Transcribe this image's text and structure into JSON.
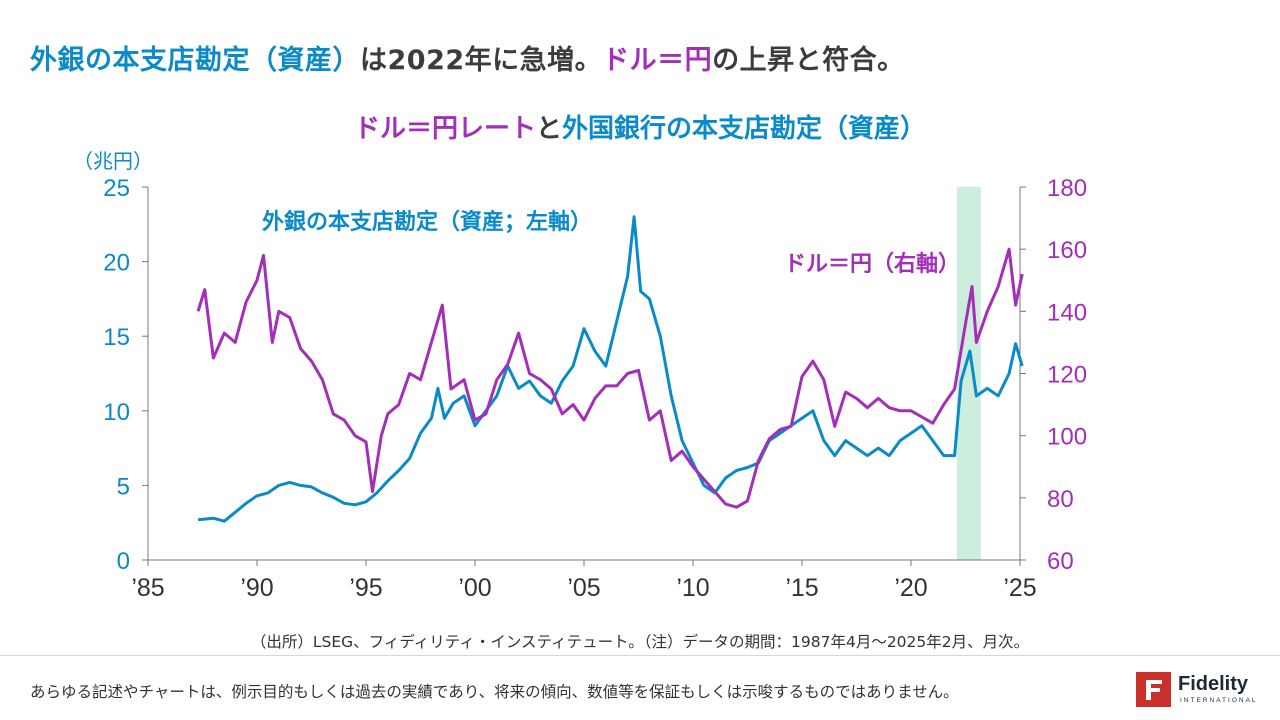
{
  "headline": {
    "part1": "外銀の本支店勘定（資産）",
    "part2": "は2022年に急増。",
    "part3": "ドル＝円",
    "part4": "の上昇と符合。"
  },
  "chart_title": {
    "part1": "ドル＝円レート",
    "part2": "と",
    "part3": "外国銀行の本支店勘定（資産）"
  },
  "source_note": "（出所）LSEG、フィディリティ・インスティテュート。（注）データの期間：1987年4月～2025年2月、月次。",
  "disclaimer": "あらゆる記述やチャートは、例示目的もしくは過去の実績であり、将来の傾向、数値等を保証もしくは示唆するものではありません。",
  "logo": {
    "name": "Fidelity",
    "sub": "INTERNATIONAL"
  },
  "colors": {
    "blue": "#0a8ac8",
    "purple": "#a32fb8",
    "highlight": "#cdeedd",
    "text": "#3c3c3c"
  },
  "chart_data": {
    "type": "line",
    "left_axis": {
      "unit_label": "（兆円）",
      "ylim": [
        0,
        25
      ],
      "ticks": [
        "0",
        "5",
        "10",
        "15",
        "20",
        "25"
      ]
    },
    "right_axis": {
      "ylim": [
        60,
        180
      ],
      "ticks": [
        "60",
        "80",
        "100",
        "120",
        "140",
        "160",
        "180"
      ]
    },
    "x_axis": {
      "xlim": [
        1985,
        2025
      ],
      "ticks": [
        "’85",
        "’90",
        "’95",
        "’00",
        "’05",
        "’10",
        "’15",
        "’20",
        "’25"
      ]
    },
    "highlight_period": [
      2022.1,
      2023.2
    ],
    "series": [
      {
        "name": "外銀の本支店勘定（資産；左軸）",
        "axis": "left",
        "color": "#0a8ac8",
        "points": [
          [
            1987.3,
            2.7
          ],
          [
            1988.0,
            2.8
          ],
          [
            1988.5,
            2.6
          ],
          [
            1989.0,
            3.2
          ],
          [
            1989.5,
            3.8
          ],
          [
            1990.0,
            4.3
          ],
          [
            1990.5,
            4.5
          ],
          [
            1991.0,
            5.0
          ],
          [
            1991.5,
            5.2
          ],
          [
            1992.0,
            5.0
          ],
          [
            1992.5,
            4.9
          ],
          [
            1993.0,
            4.5
          ],
          [
            1993.5,
            4.2
          ],
          [
            1994.0,
            3.8
          ],
          [
            1994.5,
            3.7
          ],
          [
            1995.0,
            3.9
          ],
          [
            1995.5,
            4.5
          ],
          [
            1996.0,
            5.3
          ],
          [
            1996.5,
            6.0
          ],
          [
            1997.0,
            6.8
          ],
          [
            1997.5,
            8.5
          ],
          [
            1998.0,
            9.5
          ],
          [
            1998.3,
            11.5
          ],
          [
            1998.6,
            9.5
          ],
          [
            1999.0,
            10.5
          ],
          [
            1999.5,
            11.0
          ],
          [
            2000.0,
            9.0
          ],
          [
            2000.5,
            10.0
          ],
          [
            2001.0,
            11.0
          ],
          [
            2001.5,
            13.0
          ],
          [
            2002.0,
            11.5
          ],
          [
            2002.5,
            12.0
          ],
          [
            2003.0,
            11.0
          ],
          [
            2003.5,
            10.5
          ],
          [
            2004.0,
            12.0
          ],
          [
            2004.5,
            13.0
          ],
          [
            2005.0,
            15.5
          ],
          [
            2005.5,
            14.0
          ],
          [
            2006.0,
            13.0
          ],
          [
            2006.5,
            16.0
          ],
          [
            2007.0,
            19.0
          ],
          [
            2007.3,
            23.0
          ],
          [
            2007.6,
            18.0
          ],
          [
            2008.0,
            17.5
          ],
          [
            2008.5,
            15.0
          ],
          [
            2009.0,
            11.0
          ],
          [
            2009.5,
            8.0
          ],
          [
            2010.0,
            6.5
          ],
          [
            2010.5,
            5.0
          ],
          [
            2011.0,
            4.5
          ],
          [
            2011.5,
            5.5
          ],
          [
            2012.0,
            6.0
          ],
          [
            2012.5,
            6.2
          ],
          [
            2013.0,
            6.5
          ],
          [
            2013.5,
            8.0
          ],
          [
            2014.0,
            8.5
          ],
          [
            2014.5,
            9.0
          ],
          [
            2015.0,
            9.5
          ],
          [
            2015.5,
            10.0
          ],
          [
            2016.0,
            8.0
          ],
          [
            2016.5,
            7.0
          ],
          [
            2017.0,
            8.0
          ],
          [
            2017.5,
            7.5
          ],
          [
            2018.0,
            7.0
          ],
          [
            2018.5,
            7.5
          ],
          [
            2019.0,
            7.0
          ],
          [
            2019.5,
            8.0
          ],
          [
            2020.0,
            8.5
          ],
          [
            2020.5,
            9.0
          ],
          [
            2021.0,
            8.0
          ],
          [
            2021.5,
            7.0
          ],
          [
            2022.0,
            7.0
          ],
          [
            2022.3,
            12.0
          ],
          [
            2022.7,
            14.0
          ],
          [
            2023.0,
            11.0
          ],
          [
            2023.5,
            11.5
          ],
          [
            2024.0,
            11.0
          ],
          [
            2024.5,
            12.5
          ],
          [
            2024.8,
            14.5
          ],
          [
            2025.1,
            13.0
          ]
        ]
      },
      {
        "name": "ドル＝円（右軸）",
        "axis": "right",
        "color": "#a32fb8",
        "points": [
          [
            1987.3,
            140
          ],
          [
            1987.6,
            147
          ],
          [
            1988.0,
            125
          ],
          [
            1988.5,
            133
          ],
          [
            1989.0,
            130
          ],
          [
            1989.5,
            143
          ],
          [
            1990.0,
            150
          ],
          [
            1990.3,
            158
          ],
          [
            1990.7,
            130
          ],
          [
            1991.0,
            140
          ],
          [
            1991.5,
            138
          ],
          [
            1992.0,
            128
          ],
          [
            1992.5,
            124
          ],
          [
            1993.0,
            118
          ],
          [
            1993.5,
            107
          ],
          [
            1994.0,
            105
          ],
          [
            1994.5,
            100
          ],
          [
            1995.0,
            98
          ],
          [
            1995.3,
            82
          ],
          [
            1995.7,
            100
          ],
          [
            1996.0,
            107
          ],
          [
            1996.5,
            110
          ],
          [
            1997.0,
            120
          ],
          [
            1997.5,
            118
          ],
          [
            1998.0,
            130
          ],
          [
            1998.5,
            142
          ],
          [
            1998.9,
            115
          ],
          [
            1999.5,
            118
          ],
          [
            2000.0,
            105
          ],
          [
            2000.5,
            107
          ],
          [
            2001.0,
            118
          ],
          [
            2001.5,
            123
          ],
          [
            2002.0,
            133
          ],
          [
            2002.5,
            120
          ],
          [
            2003.0,
            118
          ],
          [
            2003.5,
            115
          ],
          [
            2004.0,
            107
          ],
          [
            2004.5,
            110
          ],
          [
            2005.0,
            105
          ],
          [
            2005.5,
            112
          ],
          [
            2006.0,
            116
          ],
          [
            2006.5,
            116
          ],
          [
            2007.0,
            120
          ],
          [
            2007.5,
            121
          ],
          [
            2008.0,
            105
          ],
          [
            2008.5,
            108
          ],
          [
            2009.0,
            92
          ],
          [
            2009.5,
            95
          ],
          [
            2010.0,
            90
          ],
          [
            2010.5,
            86
          ],
          [
            2011.0,
            82
          ],
          [
            2011.5,
            78
          ],
          [
            2012.0,
            77
          ],
          [
            2012.5,
            79
          ],
          [
            2013.0,
            92
          ],
          [
            2013.5,
            99
          ],
          [
            2014.0,
            102
          ],
          [
            2014.5,
            103
          ],
          [
            2015.0,
            119
          ],
          [
            2015.5,
            124
          ],
          [
            2016.0,
            118
          ],
          [
            2016.5,
            103
          ],
          [
            2017.0,
            114
          ],
          [
            2017.5,
            112
          ],
          [
            2018.0,
            109
          ],
          [
            2018.5,
            112
          ],
          [
            2019.0,
            109
          ],
          [
            2019.5,
            108
          ],
          [
            2020.0,
            108
          ],
          [
            2020.5,
            106
          ],
          [
            2021.0,
            104
          ],
          [
            2021.5,
            110
          ],
          [
            2022.0,
            115
          ],
          [
            2022.5,
            136
          ],
          [
            2022.8,
            148
          ],
          [
            2023.0,
            130
          ],
          [
            2023.5,
            140
          ],
          [
            2024.0,
            148
          ],
          [
            2024.5,
            160
          ],
          [
            2024.8,
            142
          ],
          [
            2025.1,
            152
          ]
        ]
      }
    ],
    "annotations": [
      {
        "text": "外銀の本支店勘定（資産；左軸）",
        "color": "#0a8ac8"
      },
      {
        "text": "ドル＝円（右軸）",
        "color": "#a32fb8"
      }
    ]
  }
}
